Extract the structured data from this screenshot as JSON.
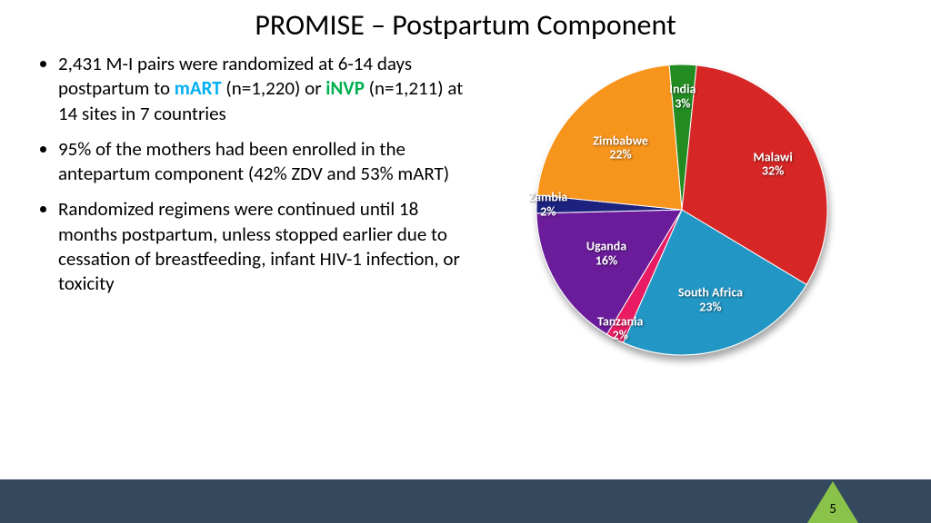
{
  "title": "PROMISE – Postpartum Component",
  "page_number": "5",
  "bullets": [
    {
      "pre": "2,431 M-I pairs were randomized at 6-14 days postpartum to ",
      "mart": "mART",
      "mid": " (n=1,220) or ",
      "invp": "iNVP",
      "post": " (n=1,211) at 14 sites in 7 countries"
    },
    {
      "text": "95% of the mothers had been enrolled in the antepartum component (42% ZDV and 53% mART)"
    },
    {
      "text": "Randomized regimens were continued until 18 months postpartum, unless stopped earlier due to cessation of breastfeeding, infant HIV-1 infection, or toxicity"
    }
  ],
  "chart": {
    "type": "pie",
    "slices": [
      {
        "name": "India",
        "pct": 3,
        "color": "#228b22",
        "label_r": 0.78
      },
      {
        "name": "Malawi",
        "pct": 32,
        "color": "#d62728",
        "label_r": 0.7
      },
      {
        "name": "South Africa",
        "pct": 23,
        "color": "#2196c4",
        "label_r": 0.65
      },
      {
        "name": "Tanzania",
        "pct": 2,
        "color": "#e91e63",
        "label_r": 0.92
      },
      {
        "name": "Uganda",
        "pct": 16,
        "color": "#6a1b9a",
        "label_r": 0.6
      },
      {
        "name": "Zambia",
        "pct": 2,
        "color": "#1a237e",
        "label_r": 0.92
      },
      {
        "name": "Zimbabwe",
        "pct": 22,
        "color": "#f7941d",
        "label_r": 0.6
      }
    ],
    "start_angle_deg": -95,
    "stroke": "#ffffff",
    "stroke_width": 1,
    "label_fontsize": 14,
    "shadow_blur": 8,
    "background_color": "#ffffff"
  },
  "footer": {
    "bar_color": "#34495e",
    "triangle_color": "#8bc34a"
  }
}
